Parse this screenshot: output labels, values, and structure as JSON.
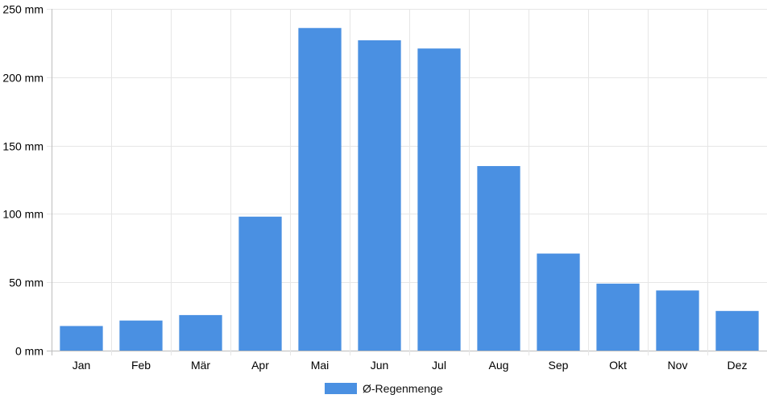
{
  "chart_data": {
    "type": "bar",
    "categories": [
      "Jan",
      "Feb",
      "Mär",
      "Apr",
      "Mai",
      "Jun",
      "Jul",
      "Aug",
      "Sep",
      "Okt",
      "Nov",
      "Dez"
    ],
    "series": [
      {
        "name": "Ø-Regenmenge",
        "values": [
          18,
          22,
          26,
          98,
          236,
          227,
          221,
          135,
          71,
          49,
          44,
          29
        ],
        "color": "#4a90e2"
      }
    ],
    "y_unit": "mm",
    "ylim": [
      0,
      250
    ],
    "y_ticks": [
      0,
      50,
      100,
      150,
      200,
      250
    ],
    "y_tick_labels": [
      "0 mm",
      "50 mm",
      "100 mm",
      "150 mm",
      "200 mm",
      "250 mm"
    ],
    "grid": true,
    "legend_position": "bottom"
  },
  "legend": {
    "label": "Ø-Regenmenge",
    "color": "#4a90e2"
  }
}
